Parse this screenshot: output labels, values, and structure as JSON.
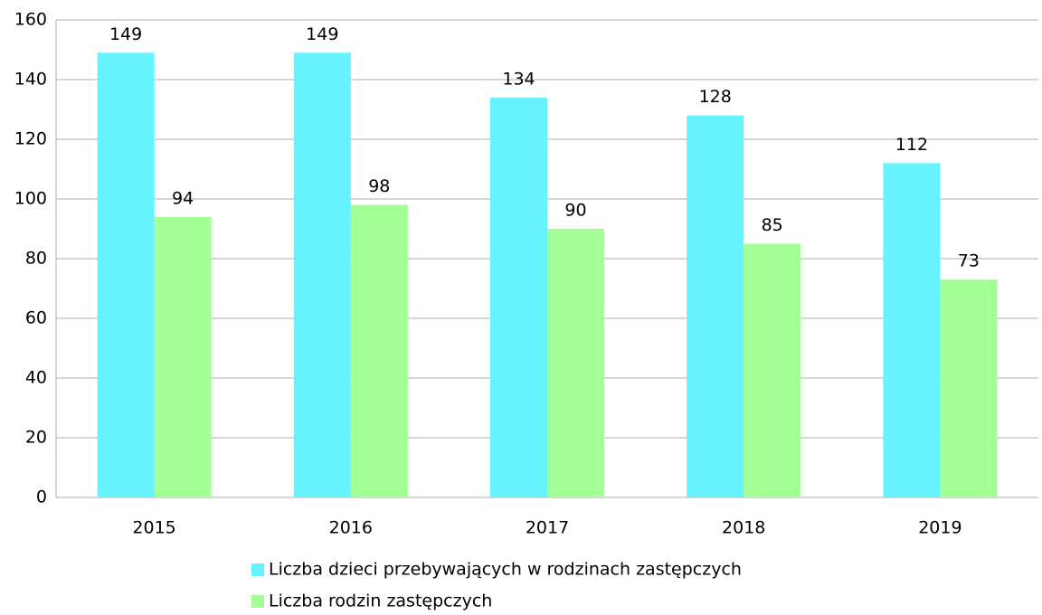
{
  "chart_data": {
    "type": "bar",
    "categories": [
      "2015",
      "2016",
      "2017",
      "2018",
      "2019"
    ],
    "series": [
      {
        "name": "Liczba dzieci przebywających w rodzinach zastępczych",
        "color": "#66f2ff",
        "values": [
          149,
          149,
          134,
          128,
          112
        ]
      },
      {
        "name": "Liczba rodzin zastępczych",
        "color": "#a2ff94",
        "values": [
          94,
          98,
          90,
          85,
          73
        ]
      }
    ],
    "ylim": [
      0,
      160
    ],
    "yticks": [
      0,
      20,
      40,
      60,
      80,
      100,
      120,
      140,
      160
    ],
    "grid": true,
    "legend": "bottom"
  }
}
